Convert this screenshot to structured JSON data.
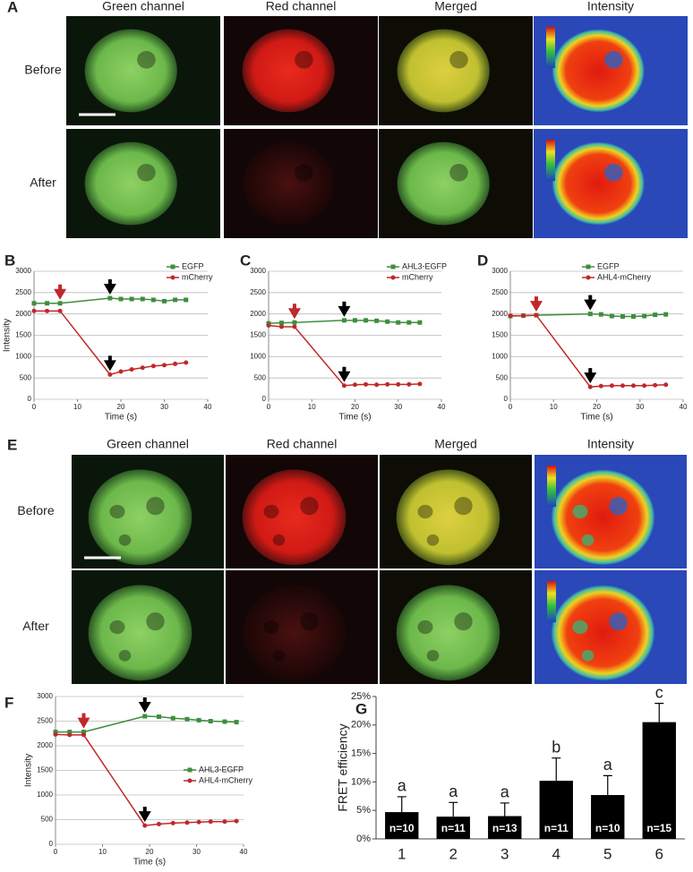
{
  "figure": {
    "panel_a": {
      "letter": "A",
      "columns": [
        "Green channel",
        "Red channel",
        "Merged",
        "Intensity"
      ],
      "rows": [
        "Before",
        "After"
      ]
    },
    "panel_e": {
      "letter": "E",
      "columns": [
        "Green channel",
        "Red channel",
        "Merged",
        "Intensity"
      ],
      "rows": [
        "Before",
        "After"
      ]
    }
  },
  "chart_data": [
    {
      "type": "line",
      "panel_label": "B",
      "xlabel": "Time (s)",
      "ylabel": "Intensity",
      "x": [
        0,
        3,
        6,
        17.5,
        20,
        22.5,
        25,
        27.5,
        30,
        32.5,
        35
      ],
      "series": [
        {
          "name": "EGFP",
          "color": "#3e8e3e",
          "marker": "square",
          "values": [
            2250,
            2250,
            2250,
            2370,
            2350,
            2350,
            2350,
            2330,
            2300,
            2330,
            2330
          ]
        },
        {
          "name": "mCherry",
          "color": "#c0282a",
          "marker": "circle",
          "values": [
            2070,
            2070,
            2070,
            580,
            650,
            700,
            740,
            780,
            800,
            830,
            860
          ]
        }
      ],
      "xlim": [
        0,
        40
      ],
      "xticks": [
        0,
        10,
        20,
        30,
        40
      ],
      "ylim": [
        0,
        3000
      ],
      "yticks": [
        0,
        500,
        1000,
        1500,
        2000,
        2500,
        3000
      ],
      "grid": true,
      "legend": "top-right"
    },
    {
      "type": "line",
      "panel_label": "C",
      "xlabel": "Time (s)",
      "x": [
        0,
        3,
        6,
        17.5,
        20,
        22.5,
        25,
        27.5,
        30,
        32.5,
        35
      ],
      "series": [
        {
          "name": "AHL3-EGFP",
          "color": "#3e8e3e",
          "marker": "square",
          "values": [
            1780,
            1790,
            1800,
            1850,
            1850,
            1850,
            1840,
            1820,
            1800,
            1800,
            1800
          ]
        },
        {
          "name": "mCherry",
          "color": "#c0282a",
          "marker": "circle",
          "values": [
            1730,
            1700,
            1700,
            320,
            340,
            350,
            340,
            350,
            350,
            350,
            360
          ]
        }
      ],
      "xlim": [
        0,
        40
      ],
      "xticks": [
        0,
        10,
        20,
        30,
        40
      ],
      "ylim": [
        0,
        3000
      ],
      "yticks": [
        0,
        500,
        1000,
        1500,
        2000,
        2500,
        3000
      ],
      "grid": true,
      "legend": "top-right"
    },
    {
      "type": "line",
      "panel_label": "D",
      "xlabel": "Time (s)",
      "x": [
        0,
        3,
        6,
        18.5,
        21,
        23.5,
        26,
        28.5,
        31,
        33.5,
        36
      ],
      "series": [
        {
          "name": "EGFP",
          "color": "#3e8e3e",
          "marker": "square",
          "values": [
            1950,
            1960,
            1970,
            2000,
            1990,
            1950,
            1940,
            1940,
            1950,
            1980,
            1990
          ]
        },
        {
          "name": "AHL4-mCherry",
          "color": "#c0282a",
          "marker": "circle",
          "values": [
            1960,
            1960,
            1970,
            290,
            310,
            320,
            320,
            320,
            320,
            330,
            340
          ]
        }
      ],
      "xlim": [
        0,
        40
      ],
      "xticks": [
        0,
        10,
        20,
        30,
        40
      ],
      "ylim": [
        0,
        3000
      ],
      "yticks": [
        0,
        500,
        1000,
        1500,
        2000,
        2500,
        3000
      ],
      "grid": true,
      "legend": "top-right"
    },
    {
      "type": "line",
      "panel_label": "F",
      "xlabel": "Time (s)",
      "ylabel": "Intensity",
      "x": [
        0,
        3,
        6,
        19,
        22,
        25,
        28,
        30.5,
        33,
        36,
        38.5
      ],
      "series": [
        {
          "name": "AHL3-EGFP",
          "color": "#3e8e3e",
          "marker": "square",
          "values": [
            2280,
            2280,
            2280,
            2600,
            2590,
            2560,
            2540,
            2520,
            2500,
            2490,
            2480
          ]
        },
        {
          "name": "AHL4-mCherry",
          "color": "#c0282a",
          "marker": "circle",
          "values": [
            2230,
            2220,
            2220,
            380,
            410,
            430,
            440,
            450,
            460,
            460,
            470
          ]
        }
      ],
      "xlim": [
        0,
        40
      ],
      "xticks": [
        0,
        10,
        20,
        30,
        40
      ],
      "ylim": [
        0,
        3000
      ],
      "yticks": [
        0,
        500,
        1000,
        1500,
        2000,
        2500,
        3000
      ],
      "grid": true,
      "legend": "right"
    },
    {
      "type": "bar",
      "panel_label": "G",
      "ylabel": "FRET efficiency",
      "categories": [
        "1",
        "2",
        "3",
        "4",
        "5",
        "6"
      ],
      "values": [
        4.7,
        3.9,
        4.0,
        10.2,
        7.7,
        20.5
      ],
      "errors": [
        2.7,
        2.5,
        2.3,
        4.0,
        3.4,
        3.3
      ],
      "group_letters": [
        "a",
        "a",
        "a",
        "b",
        "a",
        "c"
      ],
      "n_labels": [
        "n=10",
        "n=11",
        "n=13",
        "n=11",
        "n=10",
        "n=15"
      ],
      "color": "#000000",
      "ylim": [
        0,
        25
      ],
      "yticks": [
        {
          "value": 0,
          "label": "0%"
        },
        {
          "value": 5,
          "label": "5%"
        },
        {
          "value": 10,
          "label": "10%"
        },
        {
          "value": 15,
          "label": "15%"
        },
        {
          "value": 20,
          "label": "20%"
        },
        {
          "value": 25,
          "label": "25%"
        }
      ],
      "grid": false
    }
  ]
}
